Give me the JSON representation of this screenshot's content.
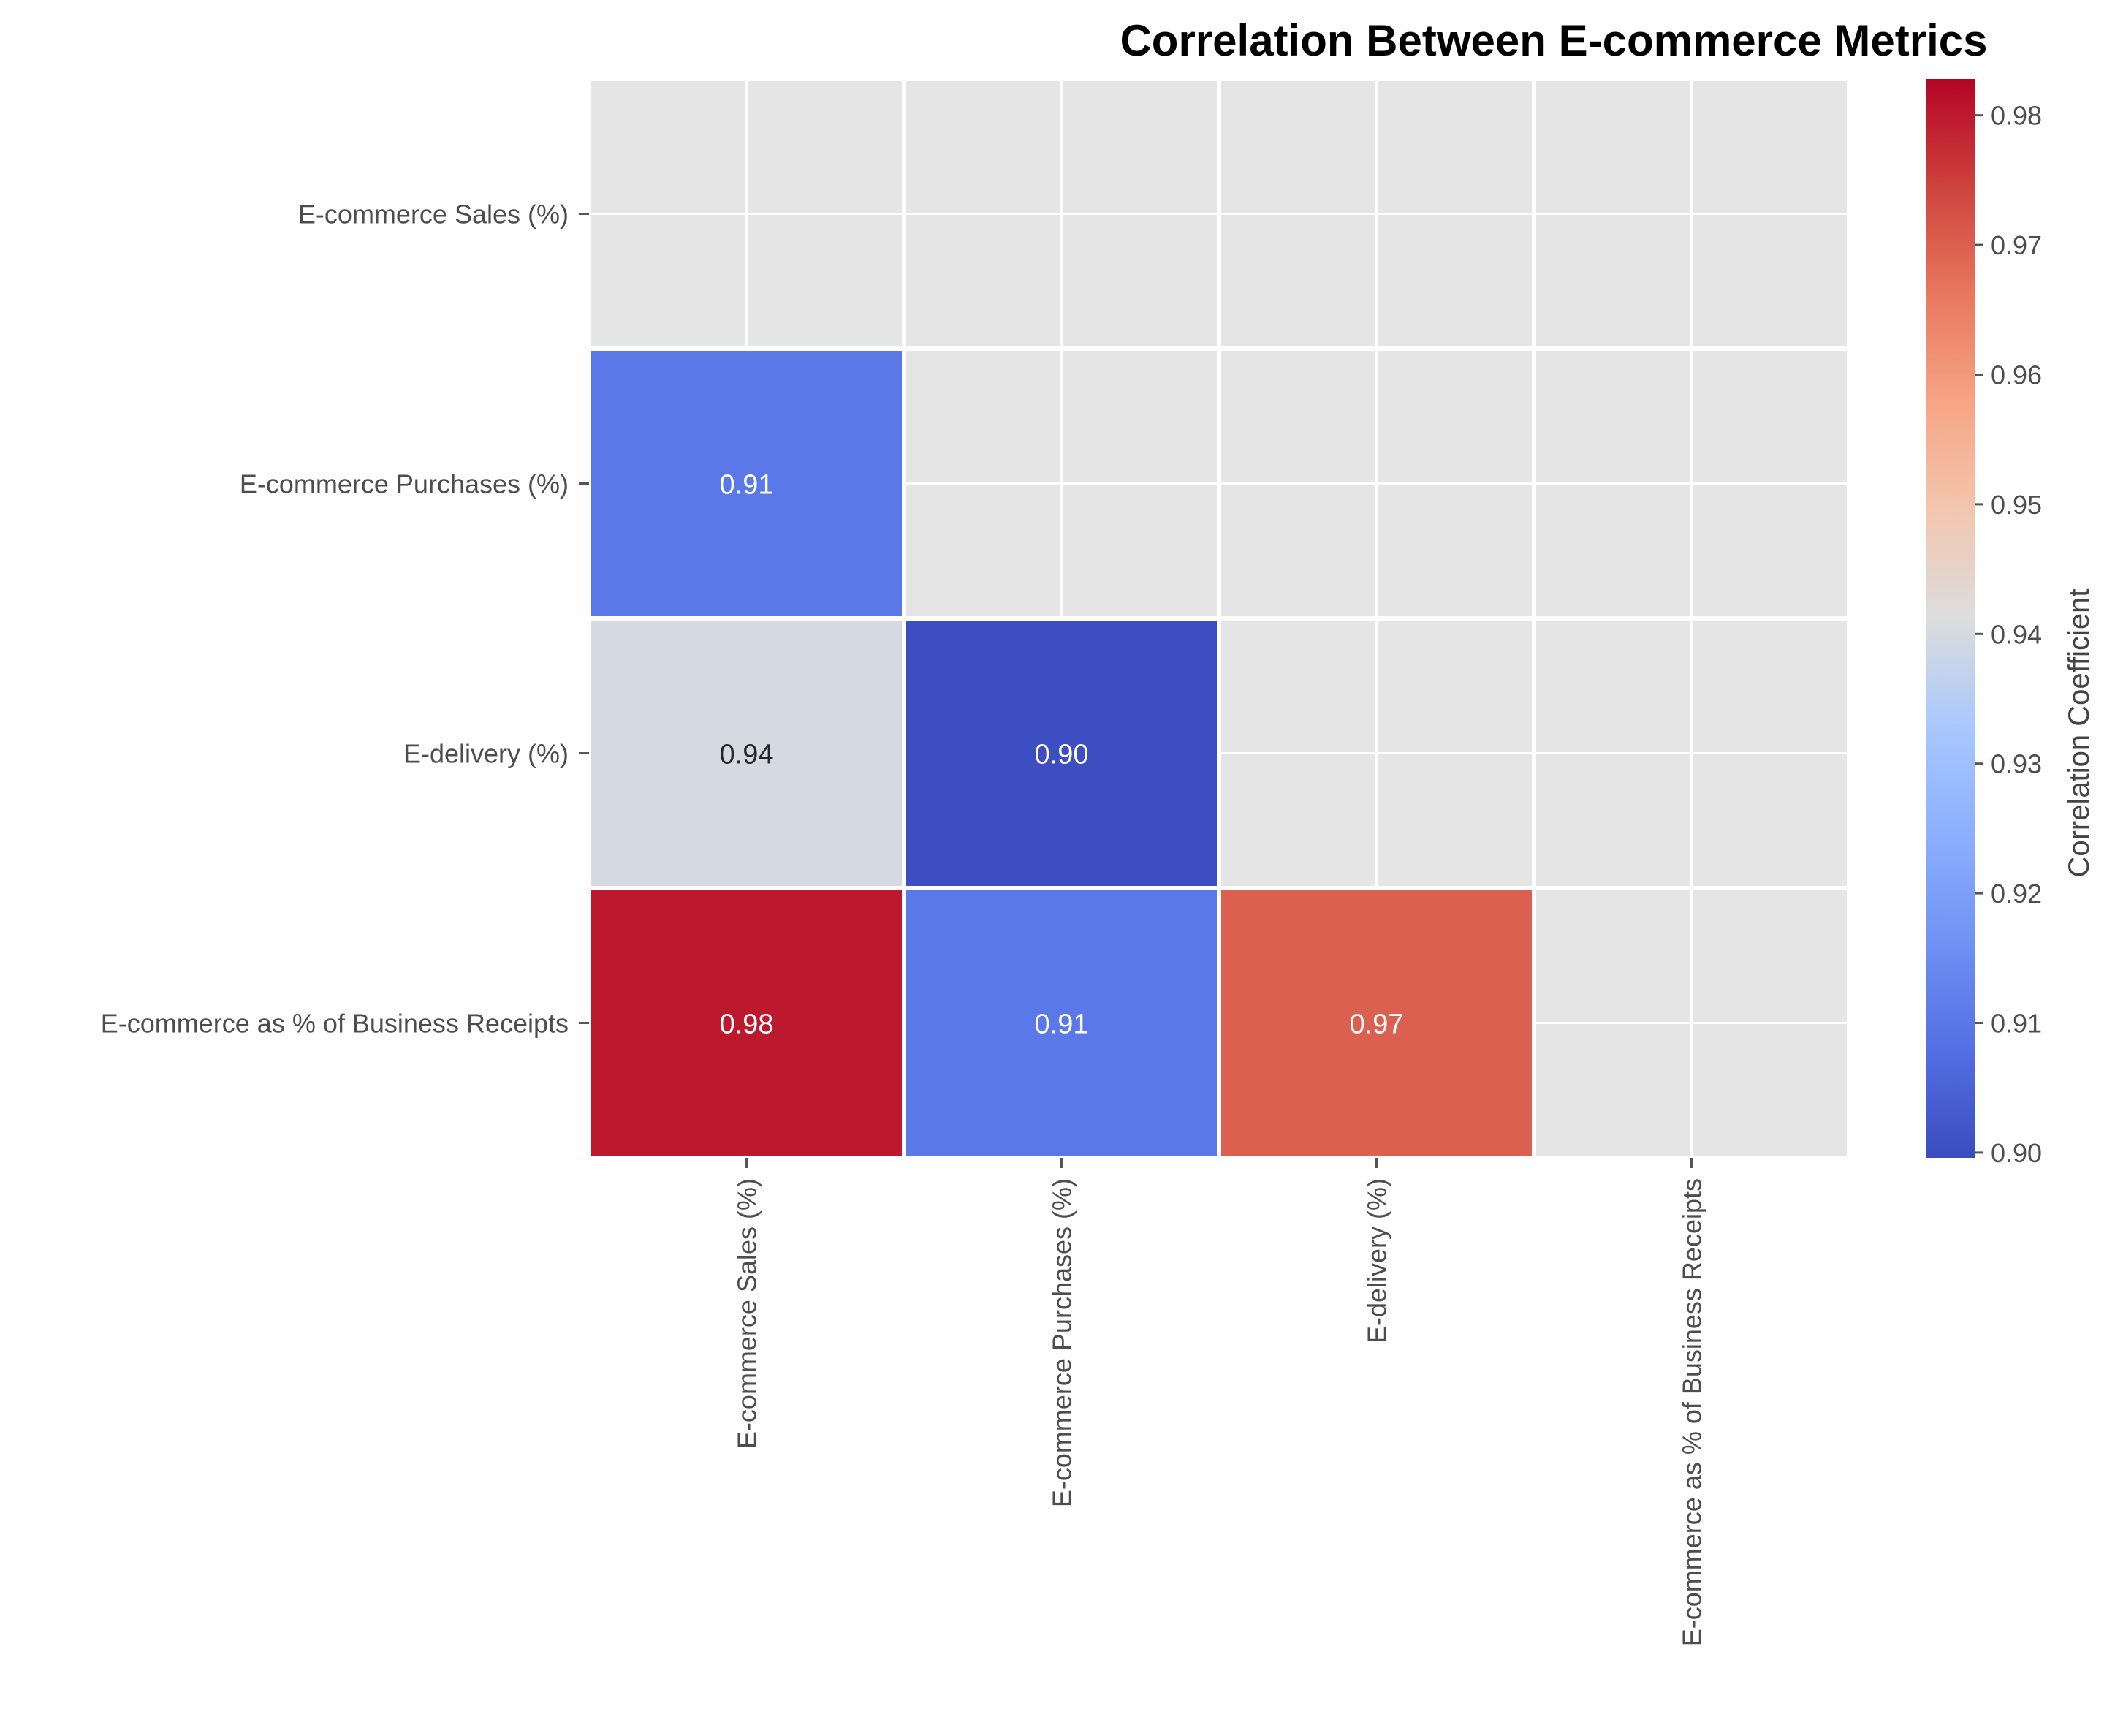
{
  "chart_data": {
    "type": "heatmap",
    "title": "Correlation Between E-commerce Metrics",
    "xlabel": "",
    "ylabel": "",
    "row_labels": [
      "E-commerce Sales (%)",
      "E-commerce Purchases (%)",
      "E-delivery (%)",
      "E-commerce as % of Business Receipts"
    ],
    "col_labels": [
      "E-commerce Sales (%)",
      "E-commerce Purchases (%)",
      "E-delivery (%)",
      "E-commerce as % of Business Receipts"
    ],
    "values": [
      [
        null,
        null,
        null,
        null
      ],
      [
        0.91,
        null,
        null,
        null
      ],
      [
        0.94,
        0.9,
        null,
        null
      ],
      [
        0.98,
        0.91,
        0.97,
        null
      ]
    ],
    "colorbar": {
      "label": "Correlation Coefficient",
      "range": [
        0.8996,
        0.9828
      ],
      "ticks": [
        "0.90",
        "0.91",
        "0.92",
        "0.93",
        "0.94",
        "0.95",
        "0.96",
        "0.97",
        "0.98"
      ],
      "colormap": "coolwarm"
    },
    "masked_fill": "#e5e5e5",
    "grid": true
  }
}
